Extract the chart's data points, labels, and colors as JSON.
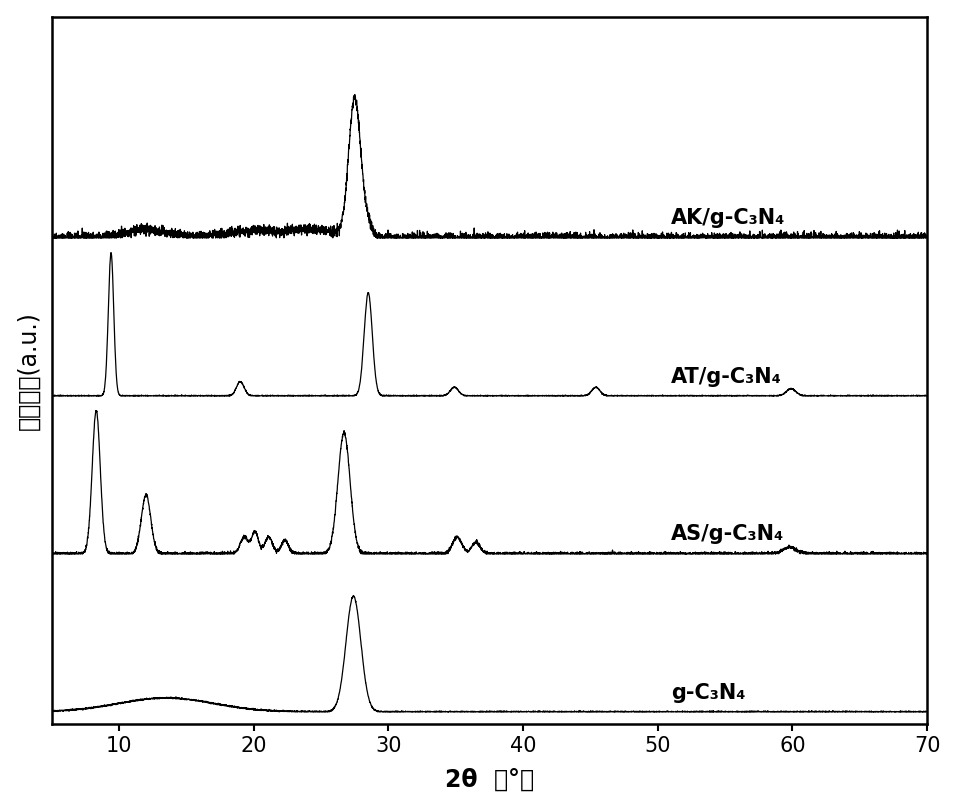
{
  "xlabel": "2θ  （°）",
  "ylabel_chinese": "信号强度",
  "ylabel_au": "(a.u.)",
  "xlim": [
    5,
    70
  ],
  "xticklabels": [
    "10",
    "20",
    "30",
    "40",
    "50",
    "60",
    "70"
  ],
  "xticks": [
    10,
    20,
    30,
    40,
    50,
    60,
    70
  ],
  "labels": [
    "AK/g-C₃N₄",
    "AT/g-C₃N₄",
    "AS/g-C₃N₄",
    "g-C₃N₄"
  ],
  "line_color": "#000000",
  "background_color": "#ffffff",
  "label_fontsize": 15,
  "tick_fontsize": 15,
  "xlabel_fontsize": 17
}
